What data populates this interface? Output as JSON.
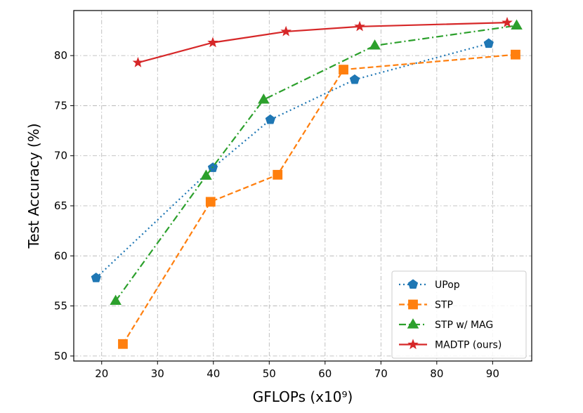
{
  "chart_data": {
    "type": "line",
    "title": "",
    "xlabel": "GFLOPs (x10⁹)",
    "ylabel": "Test Accuracy (%)",
    "xlim": [
      15,
      97
    ],
    "ylim": [
      49.5,
      84.5
    ],
    "xticks": [
      20,
      30,
      40,
      50,
      60,
      70,
      80,
      90
    ],
    "yticks": [
      50,
      55,
      60,
      65,
      70,
      75,
      80
    ],
    "grid": true,
    "legend_position": "bottom-right",
    "series": [
      {
        "name": "UPop",
        "color": "#1f77b4",
        "line_style": "dotted",
        "marker": "pentagon",
        "x": [
          19.0,
          39.9,
          50.2,
          65.3,
          89.3
        ],
        "y": [
          57.8,
          68.8,
          73.6,
          77.6,
          81.2
        ]
      },
      {
        "name": "STP",
        "color": "#ff7f0e",
        "line_style": "dashed",
        "marker": "square",
        "x": [
          23.8,
          39.5,
          51.5,
          63.3,
          94.1
        ],
        "y": [
          51.2,
          65.4,
          68.1,
          78.6,
          80.1
        ]
      },
      {
        "name": "STP w/ MAG",
        "color": "#2ca02c",
        "line_style": "dashdot",
        "marker": "triangle",
        "x": [
          22.5,
          38.7,
          49.0,
          68.9,
          94.3
        ],
        "y": [
          55.5,
          68.0,
          75.6,
          81.0,
          83.0
        ]
      },
      {
        "name": "MADTP (ours)",
        "color": "#d62728",
        "line_style": "solid",
        "marker": "star",
        "x": [
          26.5,
          39.9,
          53.0,
          66.2,
          92.6
        ],
        "y": [
          79.3,
          81.3,
          82.4,
          82.9,
          83.3
        ]
      }
    ]
  }
}
